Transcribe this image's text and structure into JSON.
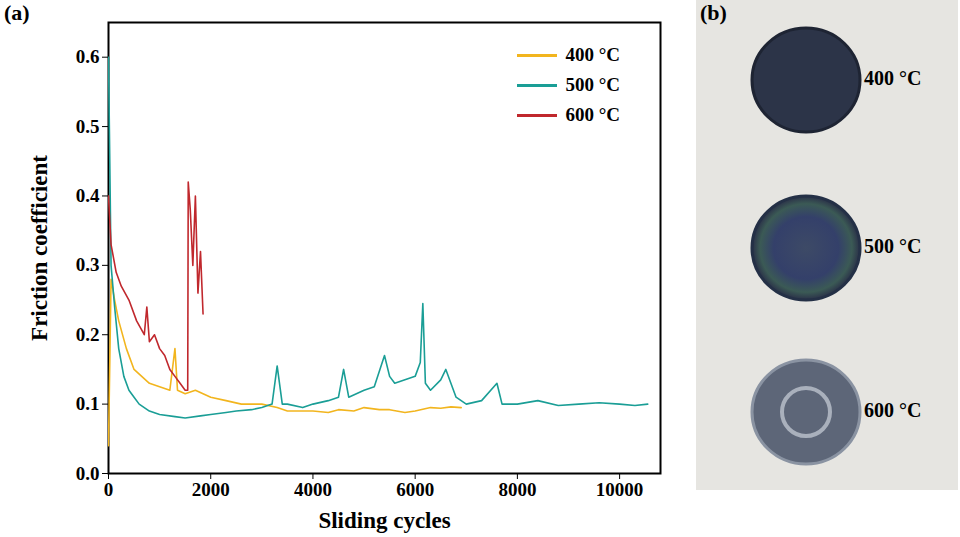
{
  "chart_data": {
    "type": "line",
    "panel_label": "(a)",
    "xlabel": "Sliding cycles",
    "ylabel": "Friction coefficient",
    "xlim": [
      0,
      10800
    ],
    "xticks": [
      0,
      2000,
      4000,
      6000,
      8000,
      10000
    ],
    "ylim": [
      0,
      0.65
    ],
    "yticks": [
      {
        "value": 0,
        "label": "0.0"
      },
      0.1,
      0.2,
      0.3,
      0.4,
      0.5,
      0.6
    ],
    "legend": "upper right",
    "series": [
      {
        "name": "400 °C",
        "color": "#f2b51e",
        "x": [
          0,
          50,
          120,
          200,
          350,
          500,
          650,
          800,
          1000,
          1200,
          1300,
          1350,
          1500,
          1700,
          2000,
          2300,
          2600,
          3000,
          3300,
          3500,
          3800,
          4000,
          4300,
          4500,
          4800,
          5000,
          5300,
          5500,
          5800,
          6000,
          6300,
          6500,
          6700,
          6900
        ],
        "values": [
          0.04,
          0.28,
          0.25,
          0.22,
          0.18,
          0.15,
          0.14,
          0.13,
          0.125,
          0.12,
          0.18,
          0.12,
          0.115,
          0.12,
          0.11,
          0.105,
          0.1,
          0.1,
          0.095,
          0.09,
          0.09,
          0.09,
          0.088,
          0.092,
          0.09,
          0.095,
          0.092,
          0.092,
          0.088,
          0.09,
          0.095,
          0.094,
          0.096,
          0.095
        ]
      },
      {
        "name": "500 °C",
        "color": "#1a9e96",
        "x": [
          0,
          50,
          120,
          200,
          300,
          400,
          500,
          600,
          800,
          1000,
          1300,
          1500,
          1800,
          2000,
          2300,
          2500,
          2800,
          3000,
          3200,
          3300,
          3400,
          3500,
          3800,
          4000,
          4300,
          4500,
          4600,
          4700,
          5000,
          5200,
          5400,
          5500,
          5600,
          5800,
          6000,
          6100,
          6150,
          6200,
          6300,
          6500,
          6600,
          6800,
          7000,
          7300,
          7600,
          7700,
          8000,
          8400,
          8800,
          9200,
          9600,
          10000,
          10300,
          10550
        ],
        "values": [
          0.6,
          0.3,
          0.24,
          0.18,
          0.14,
          0.12,
          0.11,
          0.1,
          0.09,
          0.085,
          0.082,
          0.08,
          0.083,
          0.085,
          0.088,
          0.09,
          0.092,
          0.095,
          0.1,
          0.155,
          0.1,
          0.1,
          0.095,
          0.1,
          0.105,
          0.11,
          0.15,
          0.11,
          0.12,
          0.125,
          0.17,
          0.14,
          0.13,
          0.135,
          0.14,
          0.16,
          0.245,
          0.13,
          0.12,
          0.135,
          0.15,
          0.11,
          0.1,
          0.105,
          0.13,
          0.1,
          0.1,
          0.105,
          0.098,
          0.1,
          0.102,
          0.1,
          0.098,
          0.1
        ]
      },
      {
        "name": "600 °C",
        "color": "#c0282d",
        "x": [
          0,
          50,
          150,
          250,
          400,
          550,
          700,
          750,
          800,
          900,
          1000,
          1100,
          1200,
          1300,
          1400,
          1500,
          1550,
          1560,
          1600,
          1650,
          1700,
          1750,
          1800,
          1850
        ],
        "values": [
          0.4,
          0.33,
          0.29,
          0.27,
          0.25,
          0.22,
          0.2,
          0.24,
          0.19,
          0.2,
          0.18,
          0.17,
          0.15,
          0.14,
          0.13,
          0.12,
          0.12,
          0.42,
          0.38,
          0.3,
          0.4,
          0.26,
          0.32,
          0.23
        ]
      }
    ]
  },
  "photo": {
    "panel_label": "(b)",
    "labels": [
      "400 °C",
      "500 °C",
      "600 °C"
    ]
  }
}
